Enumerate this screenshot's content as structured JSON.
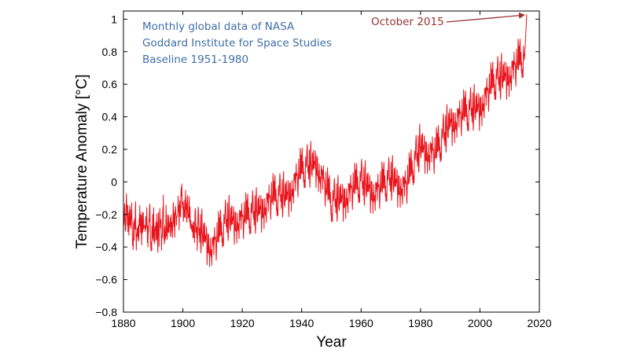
{
  "chart_data": {
    "type": "line",
    "title": "",
    "xlabel": "Year",
    "ylabel": "Temperature Anomaly [°C]",
    "xlim": [
      1880,
      2020
    ],
    "ylim": [
      -0.8,
      1.1
    ],
    "x_ticks": [
      1880,
      1900,
      1920,
      1940,
      1960,
      1980,
      2000,
      2020
    ],
    "y_ticks": [
      -0.8,
      -0.6,
      -0.4,
      -0.2,
      0,
      0.2,
      0.4,
      0.6,
      0.8,
      1
    ],
    "y_tick_labels": [
      "−0.8",
      "−0.6",
      "−0.4",
      "−0.2",
      "0",
      "0.2",
      "0.4",
      "0.6",
      "0.8",
      "1"
    ],
    "grid": false,
    "legend": "none",
    "series": [
      {
        "color": "#e8141c",
        "sampling": "monthly",
        "x": [
          1880,
          1885,
          1890,
          1895,
          1900,
          1905,
          1910,
          1915,
          1920,
          1925,
          1930,
          1935,
          1940,
          1945,
          1950,
          1955,
          1960,
          1965,
          1970,
          1975,
          1980,
          1985,
          1990,
          1995,
          2000,
          2005,
          2010,
          2015,
          2015.75
        ],
        "y": [
          -0.2,
          -0.25,
          -0.3,
          -0.25,
          -0.15,
          -0.3,
          -0.42,
          -0.25,
          -0.25,
          -0.2,
          -0.12,
          -0.1,
          0.05,
          0.1,
          -0.15,
          -0.1,
          -0.02,
          -0.08,
          0.0,
          -0.05,
          0.2,
          0.15,
          0.35,
          0.4,
          0.45,
          0.6,
          0.65,
          0.75,
          1.03
        ]
      }
    ],
    "annotations": {
      "note_lines": [
        "Monthly global data of NASA",
        "Goddard Institute for Space Studies",
        "Baseline 1951-1980"
      ],
      "note_color": "#3f6ea6",
      "callout": {
        "text": "October 2015",
        "x": 2015.75,
        "y": 1.03,
        "color": "#993333"
      }
    }
  }
}
